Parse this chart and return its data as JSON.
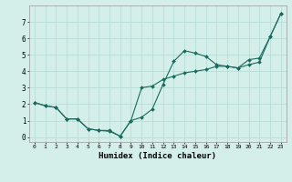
{
  "xlabel": "Humidex (Indice chaleur)",
  "background_color": "#d4eeea",
  "line_color": "#1a6b5e",
  "grid_color": "#b8ddd8",
  "xlim": [
    -0.5,
    23.5
  ],
  "ylim": [
    -0.3,
    8.0
  ],
  "yticks": [
    0,
    1,
    2,
    3,
    4,
    5,
    6,
    7
  ],
  "xticks": [
    0,
    1,
    2,
    3,
    4,
    5,
    6,
    7,
    8,
    9,
    10,
    11,
    12,
    13,
    14,
    15,
    16,
    17,
    18,
    19,
    20,
    21,
    22,
    23
  ],
  "line1_x": [
    0,
    1,
    2,
    3,
    4,
    5,
    6,
    7,
    8,
    9,
    10,
    11,
    12,
    13,
    14,
    15,
    16,
    17,
    18,
    19,
    20,
    21,
    22,
    23
  ],
  "line1_y": [
    2.1,
    1.9,
    1.8,
    1.1,
    1.1,
    0.5,
    0.4,
    0.4,
    0.05,
    1.0,
    1.2,
    1.7,
    3.2,
    4.6,
    5.25,
    5.1,
    4.9,
    4.4,
    4.3,
    4.2,
    4.7,
    4.8,
    6.1,
    7.5
  ],
  "line2_x": [
    0,
    1,
    2,
    3,
    4,
    5,
    6,
    7,
    8,
    9,
    10,
    11,
    12,
    13,
    14,
    15,
    16,
    17,
    18,
    19,
    20,
    21,
    22,
    23
  ],
  "line2_y": [
    2.1,
    1.9,
    1.8,
    1.1,
    1.1,
    0.5,
    0.4,
    0.35,
    0.05,
    1.0,
    3.0,
    3.1,
    3.5,
    3.7,
    3.9,
    4.0,
    4.1,
    4.3,
    4.3,
    4.2,
    4.4,
    4.55,
    6.1,
    7.5
  ]
}
